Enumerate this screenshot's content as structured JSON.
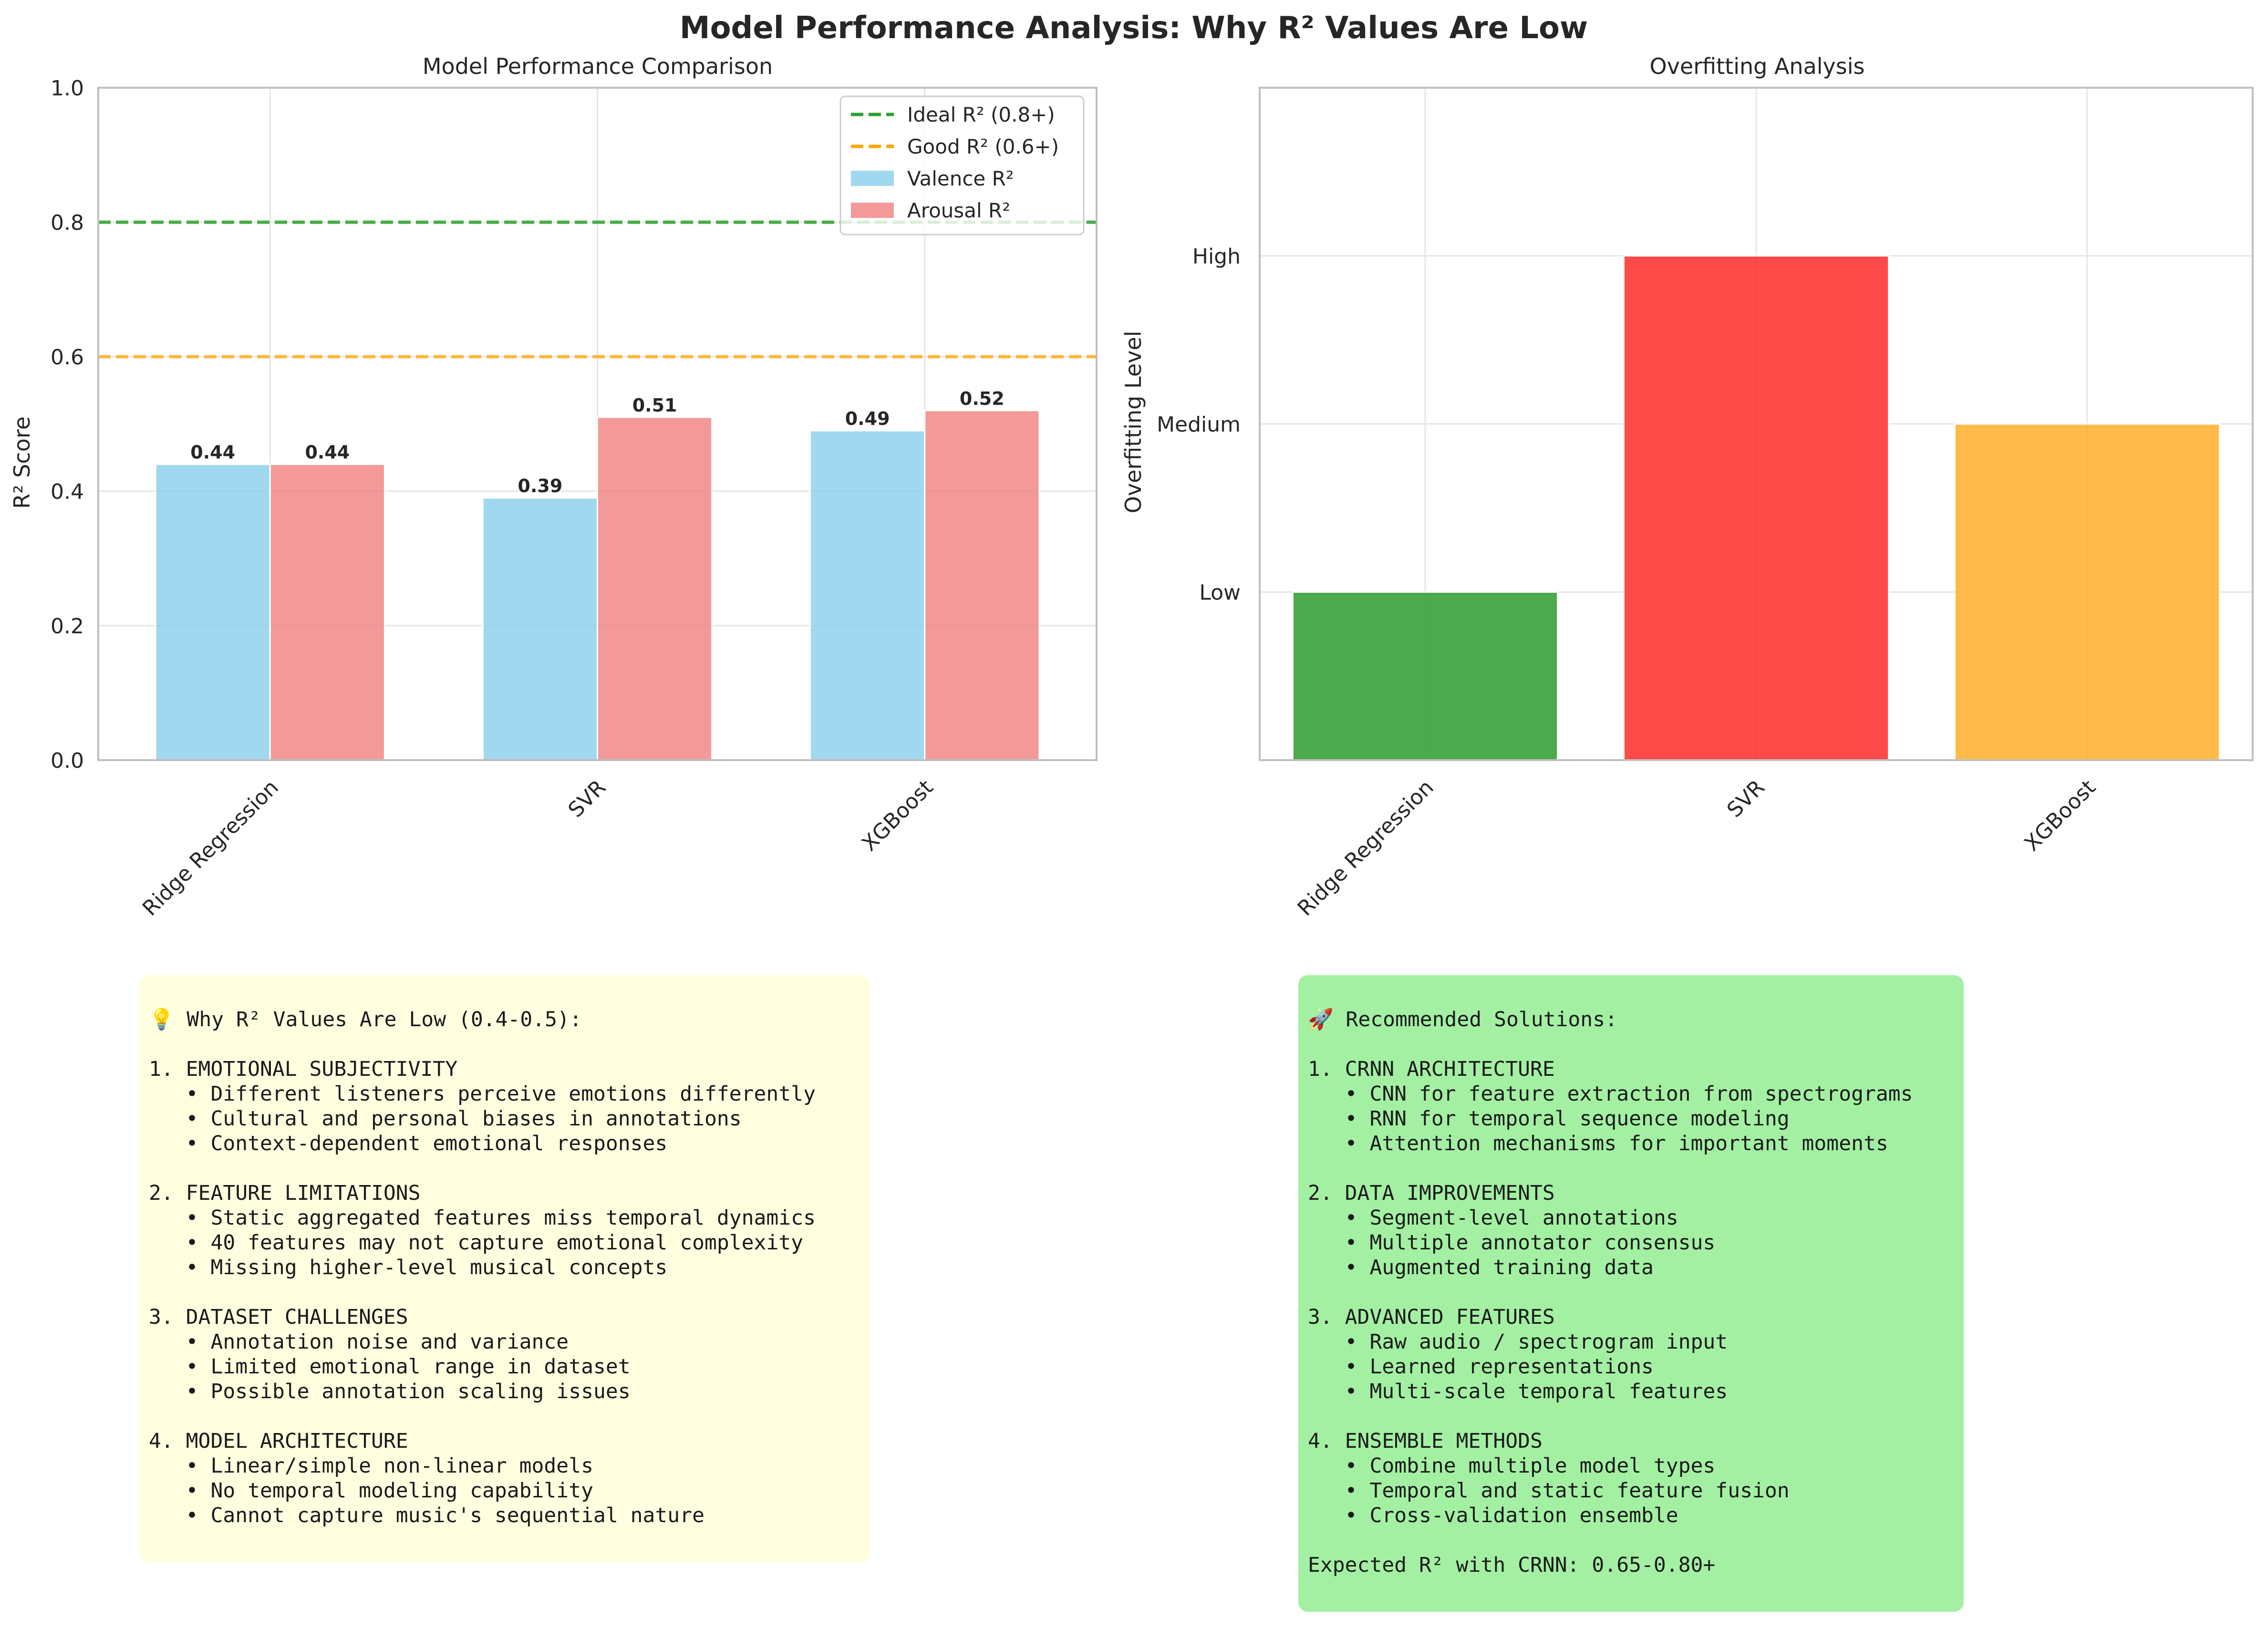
{
  "title": "Model Performance Analysis: Why R² Values Are Low",
  "chart_data": [
    {
      "type": "bar",
      "title": "Model Performance Comparison",
      "xlabel": "",
      "ylabel": "R² Score",
      "categories": [
        "Ridge Regression",
        "SVR",
        "XGBoost"
      ],
      "series": [
        {
          "name": "Valence R²",
          "values": [
            0.44,
            0.39,
            0.49
          ],
          "color": "#87ceeb"
        },
        {
          "name": "Arousal R²",
          "values": [
            0.44,
            0.51,
            0.52
          ],
          "color": "#f08080"
        }
      ],
      "value_labels": [
        [
          "0.44",
          "0.39",
          "0.49"
        ],
        [
          "0.44",
          "0.51",
          "0.52"
        ]
      ],
      "reference_lines": [
        {
          "name": "Ideal R² (0.8+)",
          "value": 0.8,
          "color": "#2ca02c",
          "style": "dashed"
        },
        {
          "name": "Good R² (0.6+)",
          "value": 0.6,
          "color": "#ffa500",
          "style": "dashed"
        }
      ],
      "ylim": [
        0,
        1.0
      ],
      "yticks": [
        "0.0",
        "0.2",
        "0.4",
        "0.6",
        "0.8",
        "1.0"
      ],
      "grid": true,
      "legend": "top-right"
    },
    {
      "type": "bar",
      "title": "Overfitting Analysis",
      "xlabel": "",
      "ylabel": "Overfitting Level",
      "categories": [
        "Ridge Regression",
        "SVR",
        "XGBoost"
      ],
      "values": [
        1,
        3,
        2
      ],
      "colors": [
        "#2e9a2e",
        "#ff2a2a",
        "#ffae2a"
      ],
      "ylim": [
        0,
        4
      ],
      "yticks": [
        {
          "value": 1,
          "label": "Low"
        },
        {
          "value": 2,
          "label": "Medium"
        },
        {
          "value": 3,
          "label": "High"
        }
      ],
      "grid": true
    }
  ],
  "panels": {
    "why_low": {
      "background": "#ffffe0",
      "lines": [
        "💡 Why R² Values Are Low (0.4-0.5):",
        "",
        "1. EMOTIONAL SUBJECTIVITY",
        "   • Different listeners perceive emotions differently",
        "   • Cultural and personal biases in annotations",
        "   • Context-dependent emotional responses",
        "",
        "2. FEATURE LIMITATIONS",
        "   • Static aggregated features miss temporal dynamics",
        "   • 40 features may not capture emotional complexity",
        "   • Missing higher-level musical concepts",
        "",
        "3. DATASET CHALLENGES",
        "   • Annotation noise and variance",
        "   • Limited emotional range in dataset",
        "   • Possible annotation scaling issues",
        "",
        "4. MODEL ARCHITECTURE",
        "   • Linear/simple non-linear models",
        "   • No temporal modeling capability",
        "   • Cannot capture music's sequential nature"
      ]
    },
    "solutions": {
      "background": "#a3f0a3",
      "lines": [
        "🚀 Recommended Solutions:",
        "",
        "1. CRNN ARCHITECTURE",
        "   • CNN for feature extraction from spectrograms",
        "   • RNN for temporal sequence modeling",
        "   • Attention mechanisms for important moments",
        "",
        "2. DATA IMPROVEMENTS",
        "   • Segment-level annotations",
        "   • Multiple annotator consensus",
        "   • Augmented training data",
        "",
        "3. ADVANCED FEATURES",
        "   • Raw audio / spectrogram input",
        "   • Learned representations",
        "   • Multi-scale temporal features",
        "",
        "4. ENSEMBLE METHODS",
        "   • Combine multiple model types",
        "   • Temporal and static feature fusion",
        "   • Cross-validation ensemble",
        "",
        "Expected R² with CRNN: 0.65-0.80+"
      ]
    }
  }
}
